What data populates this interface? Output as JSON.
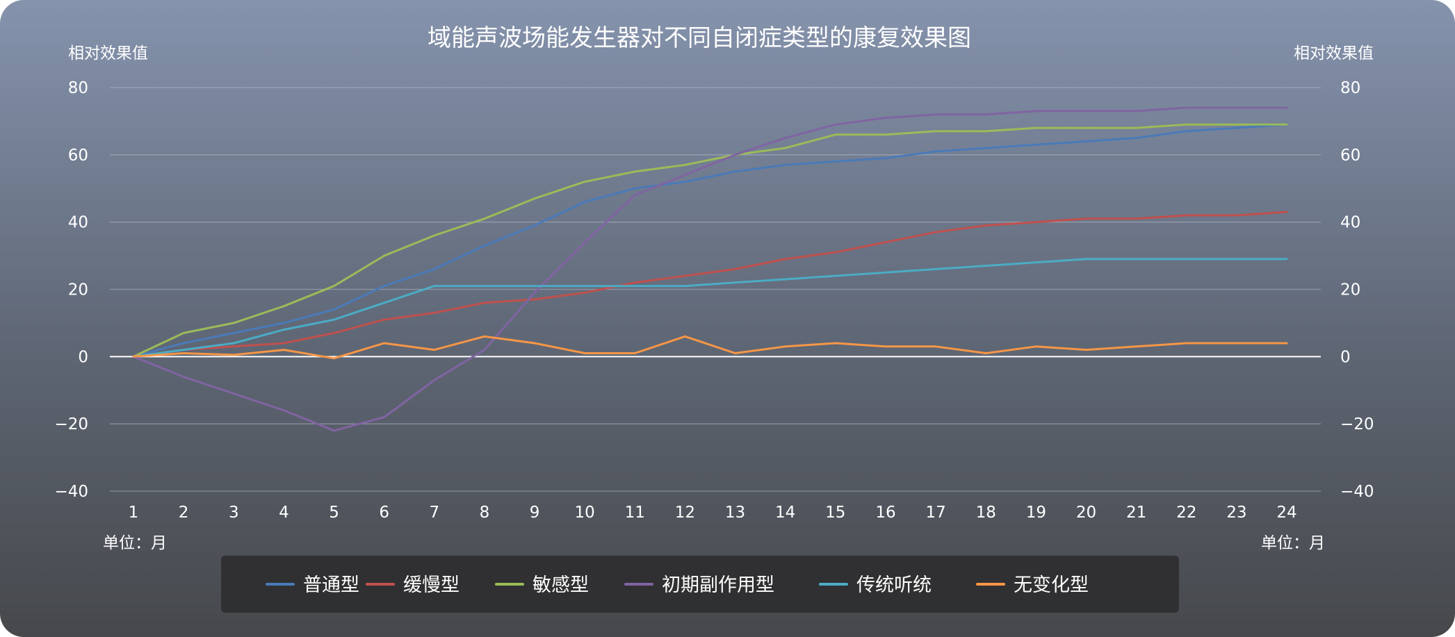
{
  "chart_data": {
    "type": "line",
    "title": "域能声波场能发生器对不同自闭症类型的康复效果图",
    "ylabel_left": "相对效果值",
    "ylabel_right": "相对效果值",
    "xlabel_left": "单位：月",
    "xlabel_right": "单位：月",
    "ylim": [
      -40,
      80
    ],
    "yticks": [
      -40,
      -20,
      0,
      20,
      40,
      60,
      80
    ],
    "ytick_labels": [
      "−40",
      "−20",
      "0",
      "20",
      "40",
      "60",
      "80"
    ],
    "x": [
      1,
      2,
      3,
      4,
      5,
      6,
      7,
      8,
      9,
      10,
      11,
      12,
      13,
      14,
      15,
      16,
      17,
      18,
      19,
      20,
      21,
      22,
      23,
      24
    ],
    "grid": true,
    "legend_position": "bottom",
    "series": [
      {
        "name": "普通型",
        "color": "#4a7ab8",
        "values": [
          0,
          4,
          7,
          10,
          14,
          21,
          26,
          33,
          39,
          46,
          50,
          52,
          55,
          57,
          58,
          59,
          61,
          62,
          63,
          64,
          65,
          67,
          68,
          69
        ]
      },
      {
        "name": "缓慢型",
        "color": "#c0504d",
        "values": [
          0,
          2,
          3,
          4,
          7,
          11,
          13,
          16,
          17,
          19,
          22,
          24,
          26,
          29,
          31,
          34,
          37,
          39,
          40,
          41,
          41,
          42,
          42,
          43
        ]
      },
      {
        "name": "敏感型",
        "color": "#9bbb59",
        "values": [
          0,
          7,
          10,
          15,
          21,
          30,
          36,
          41,
          47,
          52,
          55,
          57,
          60,
          62,
          66,
          66,
          67,
          67,
          68,
          68,
          68,
          69,
          69,
          69
        ]
      },
      {
        "name": "初期副作用型",
        "color": "#8064a2",
        "values": [
          0,
          -6,
          -11,
          -16,
          -22,
          -18,
          -7,
          2,
          19,
          34,
          48,
          54,
          60,
          65,
          69,
          71,
          72,
          72,
          73,
          73,
          73,
          74,
          74,
          74
        ]
      },
      {
        "name": "传统听统",
        "color": "#4bacc6",
        "values": [
          0,
          2,
          4,
          8,
          11,
          16,
          21,
          21,
          21,
          21,
          21,
          21,
          22,
          23,
          24,
          25,
          26,
          27,
          28,
          29,
          29,
          29,
          29,
          29
        ]
      },
      {
        "name": "无变化型",
        "color": "#f79646",
        "values": [
          0,
          1,
          0.5,
          2,
          -0.5,
          4,
          2,
          6,
          4,
          1,
          1,
          6,
          1,
          3,
          4,
          3,
          3,
          1,
          3,
          2,
          3,
          4,
          4,
          4
        ]
      }
    ]
  }
}
